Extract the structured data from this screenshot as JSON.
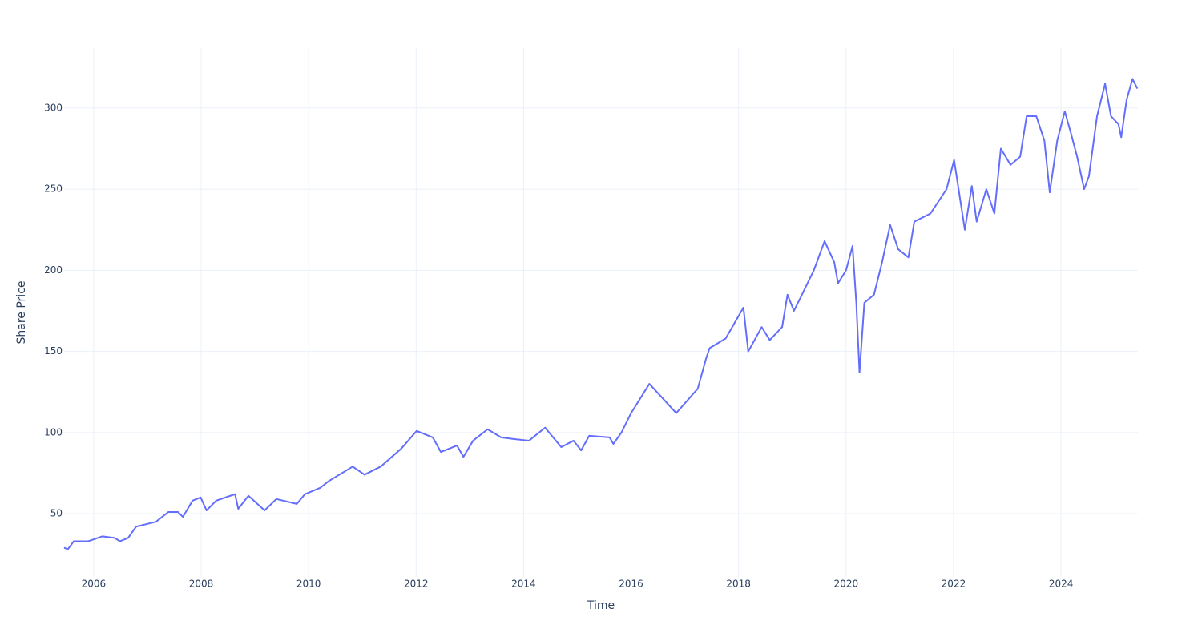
{
  "chart_data": {
    "type": "line",
    "x_label": "Time",
    "y_label": "Share Price",
    "x": [
      2005.45,
      2005.52,
      2005.63,
      2005.9,
      2006.16,
      2006.39,
      2006.49,
      2006.64,
      2006.79,
      2007.16,
      2007.39,
      2007.57,
      2007.66,
      2007.84,
      2007.99,
      2008.1,
      2008.28,
      2008.63,
      2008.69,
      2008.88,
      2009.18,
      2009.4,
      2009.78,
      2009.93,
      2010.22,
      2010.37,
      2010.82,
      2011.04,
      2011.34,
      2011.72,
      2012.01,
      2012.31,
      2012.46,
      2012.76,
      2012.88,
      2013.06,
      2013.33,
      2013.58,
      2013.81,
      2014.1,
      2014.4,
      2014.7,
      2014.93,
      2015.07,
      2015.22,
      2015.6,
      2015.67,
      2015.82,
      2016.0,
      2016.34,
      2016.84,
      2017.24,
      2017.39,
      2017.46,
      2017.76,
      2018.09,
      2018.18,
      2018.43,
      2018.58,
      2018.81,
      2018.91,
      2019.03,
      2019.18,
      2019.4,
      2019.6,
      2019.78,
      2019.85,
      2020.0,
      2020.12,
      2020.19,
      2020.25,
      2020.34,
      2020.52,
      2020.67,
      2020.82,
      2020.97,
      2021.16,
      2021.27,
      2021.57,
      2021.87,
      2022.01,
      2022.21,
      2022.34,
      2022.43,
      2022.61,
      2022.76,
      2022.88,
      2023.06,
      2023.24,
      2023.36,
      2023.54,
      2023.69,
      2023.79,
      2023.93,
      2024.07,
      2024.18,
      2024.3,
      2024.43,
      2024.52,
      2024.67,
      2024.82,
      2024.93,
      2025.07,
      2025.12,
      2025.22,
      2025.33,
      2025.42
    ],
    "series": [
      {
        "name": "Share Price",
        "color": "#636efa",
        "values": [
          29,
          28,
          33,
          33,
          36,
          35,
          33,
          35,
          42,
          45,
          51,
          51,
          48,
          58,
          60,
          52,
          58,
          62,
          53,
          61,
          52,
          59,
          56,
          62,
          66,
          70,
          79,
          74,
          79,
          90,
          101,
          97,
          88,
          92,
          85,
          95,
          102,
          97,
          96,
          95,
          103,
          91,
          95,
          89,
          98,
          97,
          93,
          100,
          112,
          130,
          112,
          127,
          145,
          152,
          158,
          177,
          150,
          165,
          157,
          165,
          185,
          175,
          185,
          200,
          218,
          205,
          192,
          200,
          215,
          180,
          137,
          180,
          185,
          205,
          228,
          213,
          208,
          230,
          235,
          250,
          268,
          225,
          252,
          230,
          250,
          235,
          275,
          265,
          270,
          295,
          295,
          280,
          248,
          280,
          298,
          285,
          270,
          250,
          258,
          295,
          315,
          295,
          290,
          282,
          305,
          318,
          312
        ]
      }
    ],
    "xlim": [
      2005.45,
      2025.43
    ],
    "ylim": [
      11,
      337
    ],
    "xticks": [
      2006,
      2008,
      2010,
      2012,
      2014,
      2016,
      2018,
      2020,
      2022,
      2024
    ],
    "yticks": [
      50,
      100,
      150,
      200,
      250,
      300
    ],
    "grid": true
  }
}
